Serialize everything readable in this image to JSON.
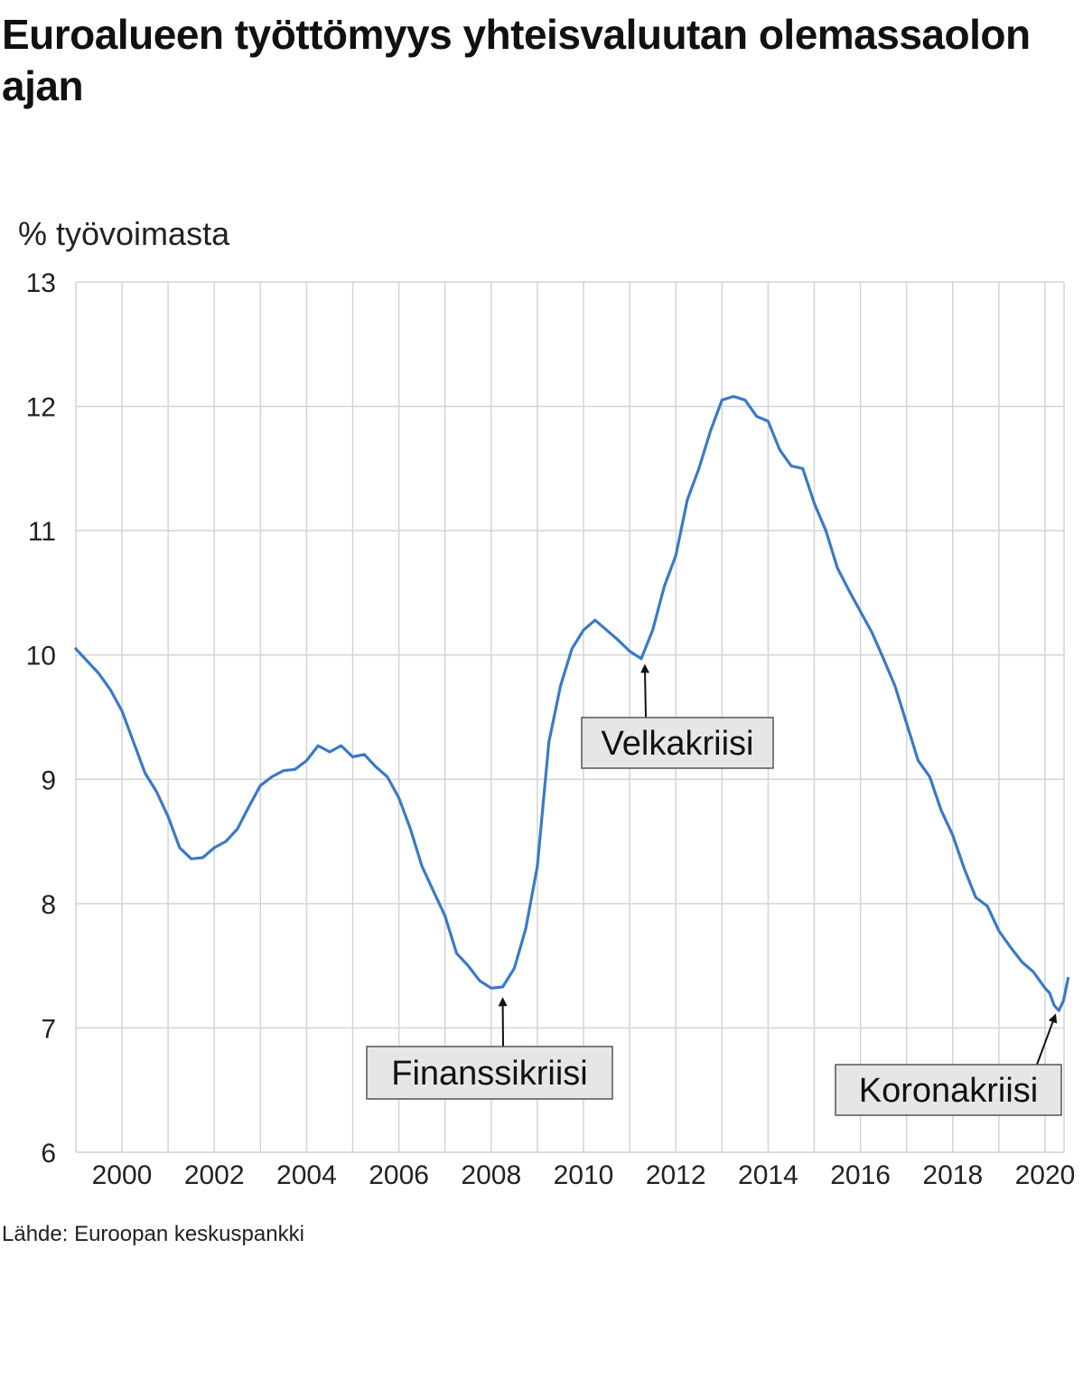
{
  "title": "Euroalueen työttömyys yhteisvaluutan olemassaolon ajan",
  "source": "Lähde: Euroopan keskuspankki",
  "chart_data": {
    "type": "line",
    "ylabel": "% työvoimasta",
    "xlabel": "",
    "ylim": [
      6,
      13
    ],
    "xlim": [
      1999.0,
      2020.5
    ],
    "yticks": [
      6,
      7,
      8,
      9,
      10,
      11,
      12,
      13
    ],
    "xticks": [
      2000,
      2002,
      2004,
      2006,
      2008,
      2010,
      2012,
      2014,
      2016,
      2018,
      2020
    ],
    "grid": true,
    "line_color": "#3a7ac5",
    "series": [
      {
        "name": "",
        "x": [
          1999.0,
          1999.25,
          1999.5,
          1999.75,
          2000.0,
          2000.25,
          2000.5,
          2000.75,
          2001.0,
          2001.25,
          2001.5,
          2001.75,
          2002.0,
          2002.25,
          2002.5,
          2002.75,
          2003.0,
          2003.25,
          2003.5,
          2003.75,
          2004.0,
          2004.25,
          2004.5,
          2004.75,
          2005.0,
          2005.25,
          2005.5,
          2005.75,
          2006.0,
          2006.25,
          2006.5,
          2006.75,
          2007.0,
          2007.25,
          2007.5,
          2007.75,
          2008.0,
          2008.25,
          2008.5,
          2008.75,
          2009.0,
          2009.25,
          2009.5,
          2009.75,
          2010.0,
          2010.25,
          2010.5,
          2010.75,
          2011.0,
          2011.25,
          2011.5,
          2011.75,
          2012.0,
          2012.25,
          2012.5,
          2012.75,
          2013.0,
          2013.25,
          2013.5,
          2013.75,
          2014.0,
          2014.25,
          2014.5,
          2014.75,
          2015.0,
          2015.25,
          2015.5,
          2015.75,
          2016.0,
          2016.25,
          2016.5,
          2016.75,
          2017.0,
          2017.25,
          2017.5,
          2017.75,
          2018.0,
          2018.25,
          2018.5,
          2018.75,
          2019.0,
          2019.25,
          2019.5,
          2019.75,
          2020.0,
          2020.1,
          2020.2,
          2020.3,
          2020.4,
          2020.5
        ],
        "y": [
          10.05,
          9.95,
          9.85,
          9.72,
          9.55,
          9.3,
          9.05,
          8.9,
          8.7,
          8.45,
          8.36,
          8.37,
          8.45,
          8.5,
          8.6,
          8.78,
          8.95,
          9.02,
          9.07,
          9.08,
          9.15,
          9.27,
          9.22,
          9.27,
          9.18,
          9.2,
          9.1,
          9.02,
          8.85,
          8.6,
          8.3,
          8.1,
          7.9,
          7.6,
          7.5,
          7.38,
          7.32,
          7.33,
          7.48,
          7.8,
          8.3,
          9.3,
          9.75,
          10.05,
          10.2,
          10.28,
          10.2,
          10.12,
          10.03,
          9.97,
          10.2,
          10.55,
          10.8,
          11.25,
          11.5,
          11.8,
          12.05,
          12.08,
          12.05,
          11.92,
          11.88,
          11.65,
          11.52,
          11.5,
          11.22,
          11.0,
          10.7,
          10.52,
          10.35,
          10.18,
          9.97,
          9.75,
          9.45,
          9.15,
          9.02,
          8.75,
          8.55,
          8.28,
          8.05,
          7.98,
          7.78,
          7.65,
          7.53,
          7.45,
          7.32,
          7.28,
          7.18,
          7.14,
          7.22,
          7.4
        ]
      }
    ],
    "annotations": [
      {
        "label": "Velkakriisi",
        "x": 2011.33,
        "y": 9.95
      },
      {
        "label": "Finanssikriisi",
        "x": 2008.25,
        "y": 7.27
      },
      {
        "label": "Koronakriisi",
        "x": 2020.2,
        "y": 7.14
      }
    ]
  }
}
